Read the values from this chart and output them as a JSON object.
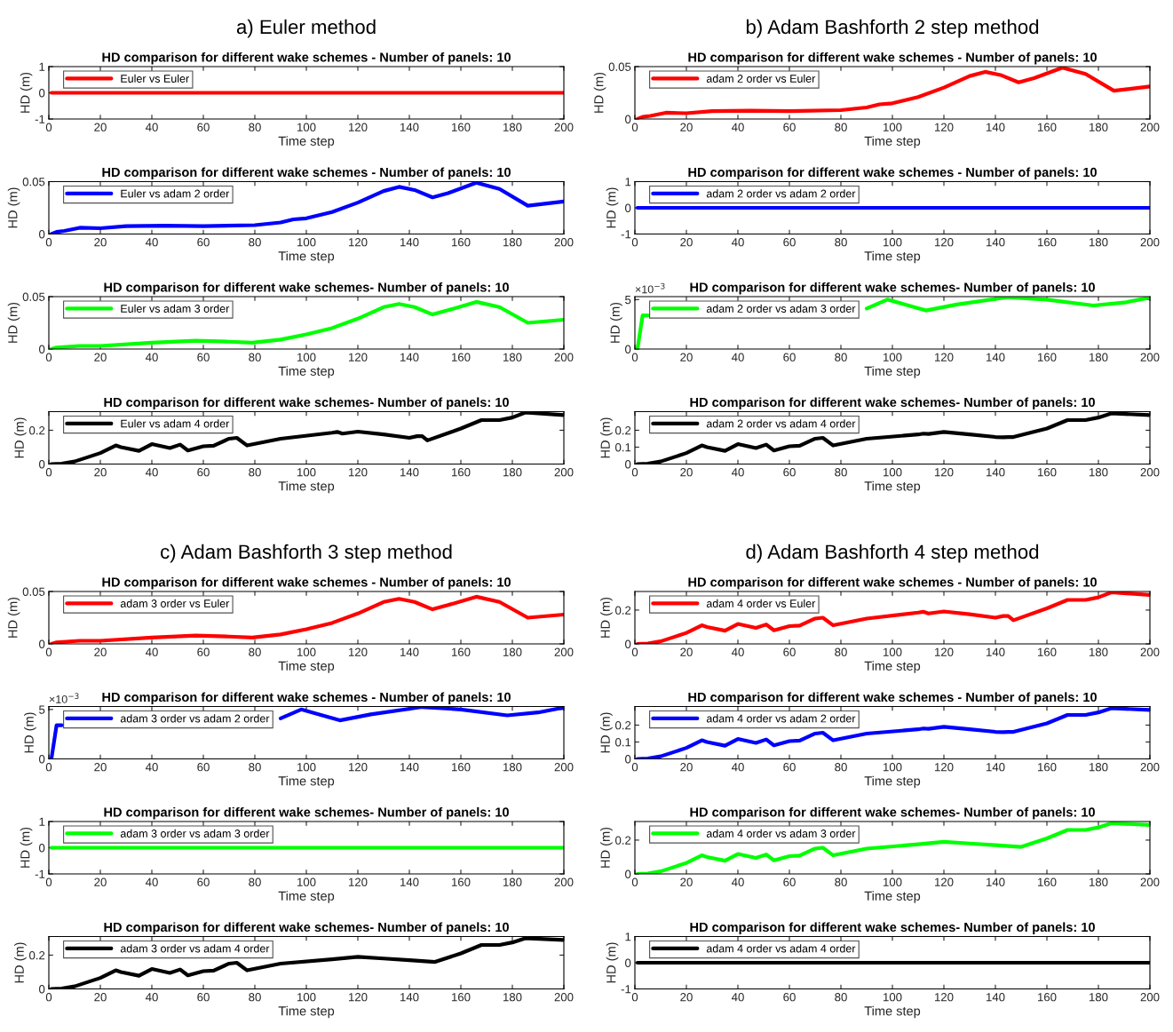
{
  "chart_data": [
    {
      "type": "line",
      "subtitle": "a) Euler method",
      "title": "HD comparison for different wake schemes - Number of panels: 10",
      "xlabel": "Time step",
      "ylabel": "HD (m)",
      "xlim": [
        0,
        200
      ],
      "xticks": [
        0,
        20,
        40,
        60,
        80,
        100,
        120,
        140,
        160,
        180,
        200
      ],
      "ylim": [
        -1,
        1
      ],
      "yticks": [
        -1,
        0,
        1
      ],
      "legend": "top left",
      "grid": false,
      "series": [
        {
          "name": "Euler vs Euler",
          "color": "#ff0000",
          "x": [
            1,
            200
          ],
          "values": [
            0,
            0
          ]
        }
      ]
    },
    {
      "type": "line",
      "title": "HD comparison for different wake schemes - Number of panels: 10",
      "xlabel": "Time step",
      "ylabel": "HD (m)",
      "xlim": [
        0,
        200
      ],
      "xticks": [
        0,
        20,
        40,
        60,
        80,
        100,
        120,
        140,
        160,
        180,
        200
      ],
      "ylim": [
        0,
        0.05
      ],
      "yticks": [
        0,
        0.05
      ],
      "legend": "top left",
      "grid": false,
      "series": [
        {
          "name": "Euler vs adam 2 order",
          "color": "#0000ff",
          "x": [
            1,
            3,
            6,
            12,
            20,
            30,
            45,
            60,
            80,
            90,
            95,
            100,
            110,
            120,
            130,
            136,
            142,
            149,
            155,
            166,
            175,
            186,
            200
          ],
          "values": [
            0,
            0.002,
            0.003,
            0.006,
            0.0055,
            0.0075,
            0.008,
            0.0075,
            0.0085,
            0.011,
            0.014,
            0.015,
            0.021,
            0.03,
            0.041,
            0.045,
            0.042,
            0.035,
            0.039,
            0.049,
            0.043,
            0.027,
            0.031
          ]
        }
      ]
    },
    {
      "type": "line",
      "title": "HD comparison for different wake schemes- Number of panels: 10",
      "xlabel": "Time step",
      "ylabel": "HD (m)",
      "xlim": [
        0,
        200
      ],
      "xticks": [
        0,
        20,
        40,
        60,
        80,
        100,
        120,
        140,
        160,
        180,
        200
      ],
      "ylim": [
        0,
        0.05
      ],
      "yticks": [
        0,
        0.05
      ],
      "legend": "top left",
      "grid": false,
      "series": [
        {
          "name": "Euler vs adam 3 order",
          "color": "#00ff00",
          "x": [
            1,
            3,
            12,
            20,
            40,
            57,
            70,
            79,
            90,
            100,
            110,
            120,
            130,
            136,
            142,
            149,
            155,
            166,
            175,
            186,
            200
          ],
          "values": [
            0,
            0.0015,
            0.003,
            0.003,
            0.006,
            0.008,
            0.007,
            0.006,
            0.009,
            0.014,
            0.02,
            0.029,
            0.04,
            0.043,
            0.04,
            0.033,
            0.037,
            0.045,
            0.04,
            0.025,
            0.028
          ]
        }
      ]
    },
    {
      "type": "line",
      "title": "HD comparison for different wake schemes- Number of panels: 10",
      "xlabel": "Time step",
      "ylabel": "HD (m)",
      "xlim": [
        0,
        200
      ],
      "xticks": [
        0,
        20,
        40,
        60,
        80,
        100,
        120,
        140,
        160,
        180,
        200
      ],
      "ylim": [
        0,
        0.31
      ],
      "yticks": [
        0,
        0.2
      ],
      "legend": "top left",
      "grid": false,
      "series": [
        {
          "name": "Euler vs adam 4 order",
          "color": "#000000",
          "x": [
            1,
            5,
            10,
            20,
            26,
            28,
            35,
            40,
            47,
            51,
            54,
            60,
            64,
            70,
            73,
            77,
            90,
            110,
            112,
            114,
            120,
            130,
            140,
            143,
            145,
            147,
            160,
            168,
            175,
            180,
            185,
            200
          ],
          "values": [
            0,
            0.002,
            0.015,
            0.065,
            0.11,
            0.1,
            0.078,
            0.118,
            0.095,
            0.115,
            0.08,
            0.105,
            0.108,
            0.15,
            0.155,
            0.11,
            0.15,
            0.185,
            0.19,
            0.18,
            0.192,
            0.175,
            0.155,
            0.165,
            0.165,
            0.14,
            0.21,
            0.26,
            0.26,
            0.275,
            0.305,
            0.29
          ]
        }
      ]
    },
    {
      "type": "line",
      "subtitle": "b) Adam Bashforth 2 step method",
      "title": "HD comparison for different wake schemes - Number of panels: 10",
      "xlabel": "Time step",
      "ylabel": "HD (m)",
      "xlim": [
        0,
        200
      ],
      "xticks": [
        0,
        20,
        40,
        60,
        80,
        100,
        120,
        140,
        160,
        180,
        200
      ],
      "ylim": [
        0,
        0.05
      ],
      "yticks": [
        0,
        0.05
      ],
      "legend": "top left",
      "grid": false,
      "series": [
        {
          "name": "adam 2 order vs Euler",
          "color": "#ff0000",
          "x": [
            1,
            3,
            6,
            12,
            20,
            30,
            45,
            60,
            80,
            90,
            95,
            100,
            110,
            120,
            130,
            136,
            142,
            149,
            155,
            166,
            175,
            186,
            200
          ],
          "values": [
            0,
            0.002,
            0.003,
            0.006,
            0.0055,
            0.0075,
            0.008,
            0.0075,
            0.0085,
            0.011,
            0.014,
            0.015,
            0.021,
            0.03,
            0.041,
            0.045,
            0.042,
            0.035,
            0.039,
            0.049,
            0.043,
            0.027,
            0.031
          ]
        }
      ]
    },
    {
      "type": "line",
      "title": "HD comparison for different wake schemes - Number of panels: 10",
      "xlabel": "Time step",
      "ylabel": "HD (m)",
      "xlim": [
        0,
        200
      ],
      "xticks": [
        0,
        20,
        40,
        60,
        80,
        100,
        120,
        140,
        160,
        180,
        200
      ],
      "ylim": [
        -1,
        1
      ],
      "yticks": [
        -1,
        0,
        1
      ],
      "legend": "top left",
      "grid": false,
      "series": [
        {
          "name": "adam 2 order vs adam 2 order",
          "color": "#0000ff",
          "x": [
            1,
            200
          ],
          "values": [
            0,
            0
          ]
        }
      ]
    },
    {
      "type": "line",
      "title": "HD comparison for different wake schemes- Number of panels: 10",
      "annotations": [
        "×10$^{−3}$"
      ],
      "xlabel": "Time step",
      "ylabel": "HD (m)",
      "xlim": [
        0,
        200
      ],
      "xticks": [
        0,
        20,
        40,
        60,
        80,
        100,
        120,
        140,
        160,
        180,
        200
      ],
      "ylim": [
        0,
        5.3
      ],
      "yticks": [
        0,
        5
      ],
      "legend": "top left",
      "grid": false,
      "series": [
        {
          "name": "adam 2 order vs adam 3 order",
          "color": "#00ff00",
          "x": [
            1,
            3,
            5,
            10,
            88,
            90,
            98,
            105,
            113,
            125,
            145,
            160,
            178,
            190,
            200
          ],
          "values": [
            0,
            3.4,
            3.4,
            null,
            null,
            4.1,
            5.0,
            4.5,
            3.9,
            4.5,
            5.25,
            5.0,
            4.4,
            4.7,
            5.2
          ]
        }
      ]
    },
    {
      "type": "line",
      "title": "HD comparison for different wake schemes- Number of panels: 10",
      "xlabel": "Time step",
      "ylabel": "HD (m)",
      "xlim": [
        0,
        200
      ],
      "xticks": [
        0,
        20,
        40,
        60,
        80,
        100,
        120,
        140,
        160,
        180,
        200
      ],
      "ylim": [
        0,
        0.31
      ],
      "yticks": [
        0,
        0.1,
        0.2
      ],
      "legend": "top left",
      "grid": false,
      "series": [
        {
          "name": "adam 2 order vs adam 4 order",
          "color": "#000000",
          "x": [
            1,
            5,
            10,
            20,
            26,
            28,
            35,
            40,
            47,
            51,
            54,
            60,
            64,
            70,
            73,
            77,
            90,
            110,
            112,
            114,
            120,
            130,
            140,
            143,
            145,
            147,
            160,
            168,
            175,
            180,
            185,
            200
          ],
          "values": [
            0,
            0.002,
            0.015,
            0.065,
            0.11,
            0.1,
            0.078,
            0.118,
            0.095,
            0.115,
            0.08,
            0.105,
            0.108,
            0.15,
            0.155,
            0.11,
            0.15,
            0.175,
            0.18,
            0.178,
            0.19,
            0.175,
            0.16,
            0.158,
            0.16,
            0.16,
            0.21,
            0.26,
            0.26,
            0.275,
            0.3,
            0.29
          ]
        }
      ]
    },
    {
      "type": "line",
      "subtitle": "c) Adam Bashforth 3 step method",
      "title": "HD comparison for different wake schemes - Number of panels: 10",
      "xlabel": "Time step",
      "ylabel": "HD (m)",
      "xlim": [
        0,
        200
      ],
      "xticks": [
        0,
        20,
        40,
        60,
        80,
        100,
        120,
        140,
        160,
        180,
        200
      ],
      "ylim": [
        0,
        0.05
      ],
      "yticks": [
        0,
        0.05
      ],
      "legend": "top left",
      "grid": false,
      "series": [
        {
          "name": "adam 3 order vs Euler",
          "color": "#ff0000",
          "x": [
            1,
            3,
            12,
            20,
            40,
            57,
            70,
            79,
            90,
            100,
            110,
            120,
            130,
            136,
            142,
            149,
            155,
            166,
            175,
            186,
            200
          ],
          "values": [
            0,
            0.0015,
            0.003,
            0.003,
            0.006,
            0.008,
            0.007,
            0.006,
            0.009,
            0.014,
            0.02,
            0.029,
            0.04,
            0.043,
            0.04,
            0.033,
            0.037,
            0.045,
            0.04,
            0.025,
            0.028
          ]
        }
      ]
    },
    {
      "type": "line",
      "title": "HD comparison for different wake schemes - Number of panels: 10",
      "annotations": [
        "×10$^{−3}$"
      ],
      "xlabel": "Time step",
      "ylabel": "HD (m)",
      "xlim": [
        0,
        200
      ],
      "xticks": [
        0,
        20,
        40,
        60,
        80,
        100,
        120,
        140,
        160,
        180,
        200
      ],
      "ylim": [
        0,
        5.3
      ],
      "yticks": [
        0,
        5
      ],
      "legend": "top left",
      "grid": false,
      "series": [
        {
          "name": "adam 3 order vs adam 2 order",
          "color": "#0000ff",
          "x": [
            1,
            3,
            5,
            10,
            88,
            90,
            98,
            105,
            113,
            125,
            145,
            160,
            178,
            190,
            200
          ],
          "values": [
            0,
            3.4,
            3.4,
            null,
            null,
            4.1,
            5.0,
            4.5,
            3.9,
            4.5,
            5.25,
            5.0,
            4.4,
            4.7,
            5.2
          ]
        }
      ]
    },
    {
      "type": "line",
      "title": "HD comparison for different wake schemes- Number of panels: 10",
      "xlabel": "Time step",
      "ylabel": "HD (m)",
      "xlim": [
        0,
        200
      ],
      "xticks": [
        0,
        20,
        40,
        60,
        80,
        100,
        120,
        140,
        160,
        180,
        200
      ],
      "ylim": [
        -1,
        1
      ],
      "yticks": [
        -1,
        0,
        1
      ],
      "legend": "top left",
      "grid": false,
      "series": [
        {
          "name": "adam 3 order vs adam 3 order",
          "color": "#00ff00",
          "x": [
            1,
            200
          ],
          "values": [
            0,
            0
          ]
        }
      ]
    },
    {
      "type": "line",
      "title": "HD comparison for different wake schemes- Number of panels: 10",
      "xlabel": "Time step",
      "ylabel": "HD (m)",
      "xlim": [
        0,
        200
      ],
      "xticks": [
        0,
        20,
        40,
        60,
        80,
        100,
        120,
        140,
        160,
        180,
        200
      ],
      "ylim": [
        0,
        0.31
      ],
      "yticks": [
        0,
        0.2
      ],
      "legend": "top left",
      "grid": false,
      "series": [
        {
          "name": "adam 3 order vs adam 4 order",
          "color": "#000000",
          "x": [
            1,
            5,
            10,
            20,
            26,
            28,
            35,
            40,
            47,
            51,
            54,
            60,
            64,
            70,
            73,
            77,
            90,
            110,
            120,
            130,
            140,
            150,
            160,
            168,
            175,
            180,
            185,
            200
          ],
          "values": [
            0,
            0.002,
            0.015,
            0.065,
            0.11,
            0.1,
            0.078,
            0.118,
            0.095,
            0.115,
            0.08,
            0.105,
            0.108,
            0.15,
            0.155,
            0.11,
            0.15,
            0.175,
            0.19,
            0.18,
            0.17,
            0.16,
            0.21,
            0.26,
            0.26,
            0.275,
            0.3,
            0.29
          ]
        }
      ]
    },
    {
      "type": "line",
      "subtitle": "d) Adam Bashforth 4 step method",
      "title": "HD comparison for different wake schemes - Number of panels: 10",
      "xlabel": "Time step",
      "ylabel": "HD (m)",
      "xlim": [
        0,
        200
      ],
      "xticks": [
        0,
        20,
        40,
        60,
        80,
        100,
        120,
        140,
        160,
        180,
        200
      ],
      "ylim": [
        0,
        0.31
      ],
      "yticks": [
        0,
        0.2
      ],
      "legend": "top left",
      "grid": false,
      "series": [
        {
          "name": "adam 4 order vs Euler",
          "color": "#ff0000",
          "x": [
            1,
            5,
            10,
            20,
            26,
            28,
            35,
            40,
            47,
            51,
            54,
            60,
            64,
            70,
            73,
            77,
            90,
            110,
            112,
            114,
            120,
            130,
            140,
            143,
            145,
            147,
            160,
            168,
            175,
            180,
            185,
            200
          ],
          "values": [
            0,
            0.002,
            0.015,
            0.065,
            0.11,
            0.1,
            0.078,
            0.118,
            0.095,
            0.115,
            0.08,
            0.105,
            0.108,
            0.15,
            0.155,
            0.11,
            0.15,
            0.185,
            0.19,
            0.18,
            0.192,
            0.175,
            0.155,
            0.165,
            0.165,
            0.14,
            0.21,
            0.26,
            0.26,
            0.275,
            0.305,
            0.29
          ]
        }
      ]
    },
    {
      "type": "line",
      "title": "HD comparison for different wake schemes - Number of panels: 10",
      "xlabel": "Time step",
      "ylabel": "HD (m)",
      "xlim": [
        0,
        200
      ],
      "xticks": [
        0,
        20,
        40,
        60,
        80,
        100,
        120,
        140,
        160,
        180,
        200
      ],
      "ylim": [
        0,
        0.31
      ],
      "yticks": [
        0,
        0.1,
        0.2
      ],
      "legend": "top left",
      "grid": false,
      "series": [
        {
          "name": "adam 4 order vs adam 2 order",
          "color": "#0000ff",
          "x": [
            1,
            5,
            10,
            20,
            26,
            28,
            35,
            40,
            47,
            51,
            54,
            60,
            64,
            70,
            73,
            77,
            90,
            110,
            112,
            114,
            120,
            130,
            140,
            143,
            145,
            147,
            160,
            168,
            175,
            180,
            185,
            200
          ],
          "values": [
            0,
            0.002,
            0.015,
            0.065,
            0.11,
            0.1,
            0.078,
            0.118,
            0.095,
            0.115,
            0.08,
            0.105,
            0.108,
            0.15,
            0.155,
            0.11,
            0.15,
            0.175,
            0.18,
            0.178,
            0.19,
            0.175,
            0.16,
            0.158,
            0.16,
            0.16,
            0.21,
            0.26,
            0.26,
            0.275,
            0.3,
            0.29
          ]
        }
      ]
    },
    {
      "type": "line",
      "title": "HD comparison for different wake schemes- Number of panels: 10",
      "xlabel": "Time step",
      "ylabel": "HD (m)",
      "xlim": [
        0,
        200
      ],
      "xticks": [
        0,
        20,
        40,
        60,
        80,
        100,
        120,
        140,
        160,
        180,
        200
      ],
      "ylim": [
        0,
        0.31
      ],
      "yticks": [
        0,
        0.2
      ],
      "legend": "top left",
      "grid": false,
      "series": [
        {
          "name": "adam 4 order vs adam 3 order",
          "color": "#00ff00",
          "x": [
            1,
            5,
            10,
            20,
            26,
            28,
            35,
            40,
            47,
            51,
            54,
            60,
            64,
            70,
            73,
            77,
            90,
            110,
            120,
            130,
            140,
            150,
            160,
            168,
            175,
            180,
            185,
            200
          ],
          "values": [
            0,
            0.002,
            0.015,
            0.065,
            0.11,
            0.1,
            0.078,
            0.118,
            0.095,
            0.115,
            0.08,
            0.105,
            0.108,
            0.15,
            0.155,
            0.11,
            0.15,
            0.175,
            0.19,
            0.18,
            0.17,
            0.16,
            0.21,
            0.26,
            0.26,
            0.275,
            0.3,
            0.29
          ]
        }
      ]
    },
    {
      "type": "line",
      "title": "HD comparison for different wake schemes- Number of panels: 10",
      "xlabel": "Time step",
      "ylabel": "HD (m)",
      "xlim": [
        0,
        200
      ],
      "xticks": [
        0,
        20,
        40,
        60,
        80,
        100,
        120,
        140,
        160,
        180,
        200
      ],
      "ylim": [
        -1,
        1
      ],
      "yticks": [
        -1,
        0,
        1
      ],
      "legend": "top left",
      "grid": false,
      "series": [
        {
          "name": "adam 4 order vs adam 4 order",
          "color": "#000000",
          "x": [
            1,
            200
          ],
          "values": [
            0,
            0
          ]
        }
      ]
    }
  ]
}
